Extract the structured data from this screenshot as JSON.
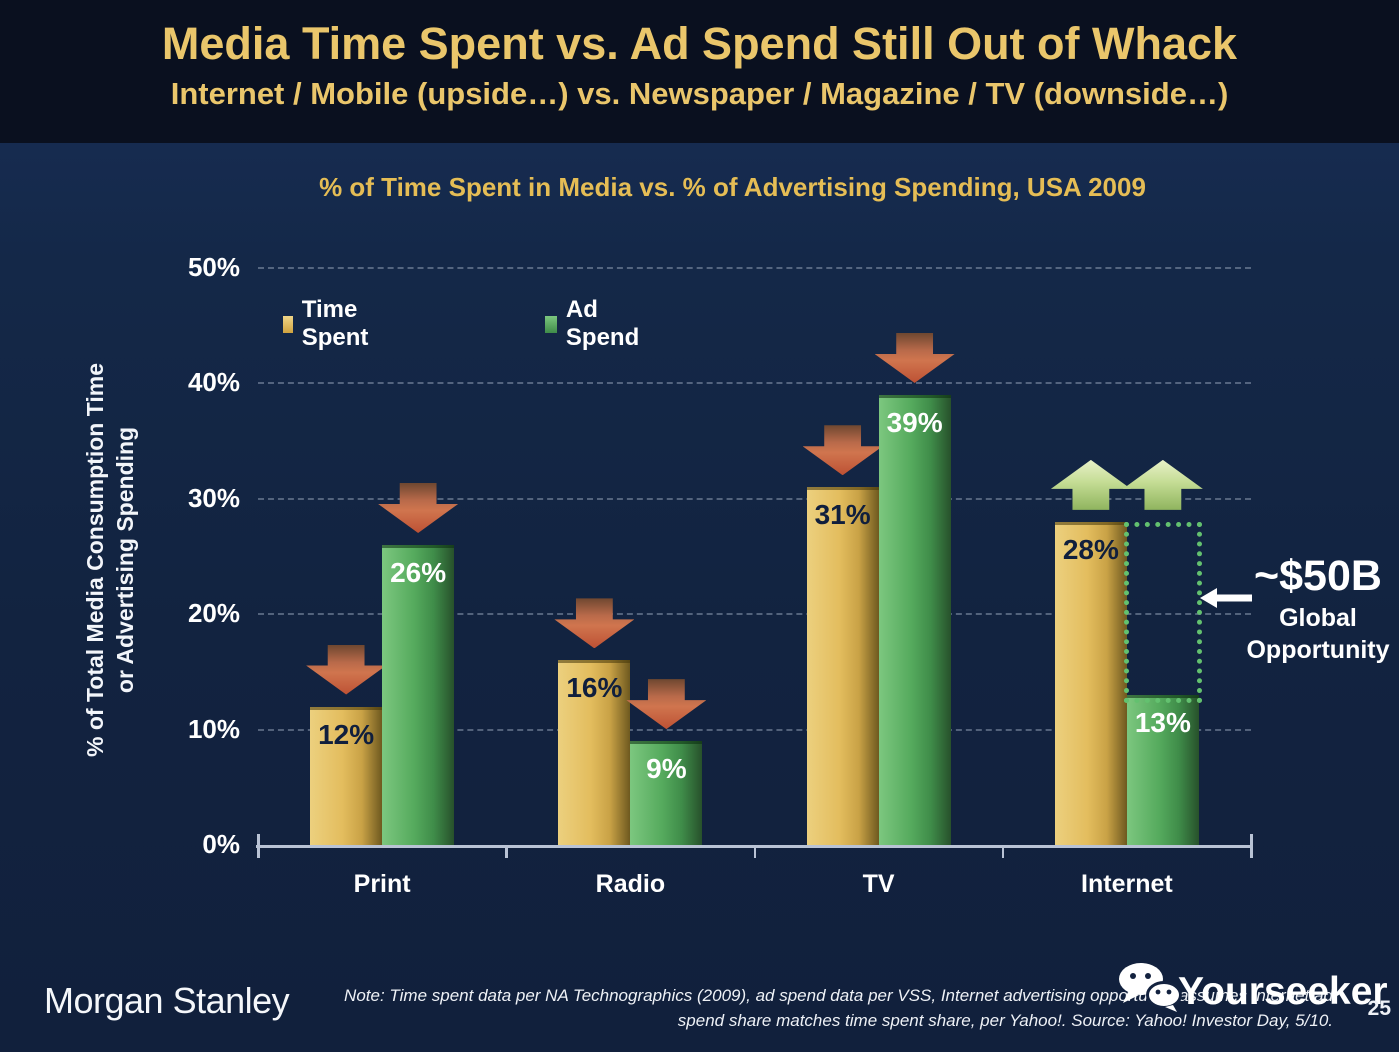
{
  "header": {
    "title": "Media Time Spent vs. Ad Spend Still Out of Whack",
    "subtitle": "Internet / Mobile (upside…) vs. Newspaper / Magazine / TV (downside…)"
  },
  "chart": {
    "title": "% of Time Spent in Media vs. % of Advertising Spending, USA 2009",
    "y_axis_label_line1": "% of Total Media Consumption Time",
    "y_axis_label_line2": "or Advertising Spending"
  },
  "chart_data": {
    "type": "bar",
    "title": "% of Time Spent in Media vs. % of Advertising Spending, USA 2009",
    "categories": [
      "Print",
      "Radio",
      "TV",
      "Internet"
    ],
    "series": [
      {
        "name": "Time Spent",
        "color": "#e3bd5e",
        "values": [
          12,
          16,
          31,
          28
        ],
        "labels": [
          "12%",
          "16%",
          "31%",
          "28%"
        ]
      },
      {
        "name": "Ad Spend",
        "color": "#55aa5d",
        "values": [
          26,
          9,
          39,
          13
        ],
        "labels": [
          "26%",
          "9%",
          "39%",
          "13%"
        ]
      }
    ],
    "ylabel": "% of Total Media Consumption Time or Advertising Spending",
    "ylim": [
      0,
      50
    ],
    "yticks": [
      "0%",
      "10%",
      "20%",
      "30%",
      "40%",
      "50%"
    ],
    "grid": "dashed-horizontal",
    "legend_position": "top-left",
    "annotations": {
      "down_arrow_categories": [
        "Print",
        "Radio",
        "TV"
      ],
      "up_arrow_categories": [
        "Internet"
      ],
      "gap_callout": {
        "text": "~$50B",
        "caption_line1": "Global",
        "caption_line2": "Opportunity",
        "category": "Internet",
        "gap_from": 13,
        "gap_to": 28
      }
    }
  },
  "colors": {
    "header_background": "#0a101f",
    "body_background": "#122340",
    "accent_gold": "#eac66b",
    "chart_title_gold": "#e5bd55",
    "bar_gold": "#e3bd5e",
    "bar_green": "#55aa5d",
    "down_arrow": "#c96e4a",
    "up_arrow": "#b5d083",
    "gap_dotted_green": "#63c16f",
    "text_white": "#ffffff"
  },
  "footer": {
    "brand": "Morgan Stanley",
    "note_line1": "Note: Time spent data per NA Technographics (2009), ad spend data per VSS, Internet advertising opportunity assumes Internet ad",
    "note_line2": "spend share matches time spent share, per Yahoo!. Source: Yahoo! Investor Day, 5/10.",
    "watermark": "Yourseeker",
    "page_number": "25"
  }
}
